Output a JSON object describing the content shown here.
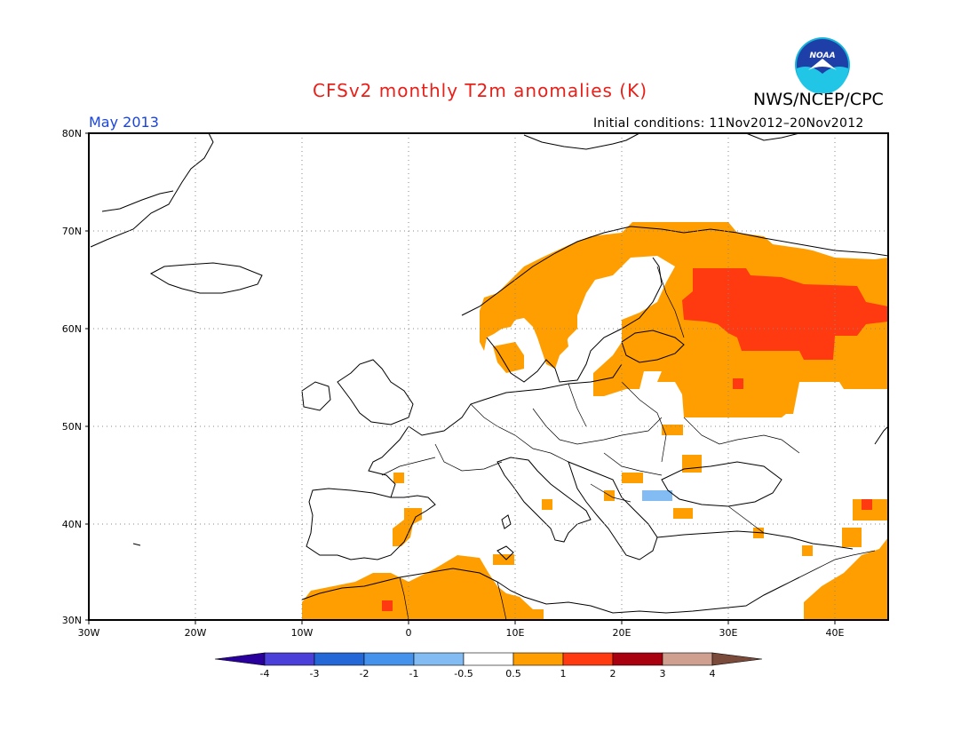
{
  "header": {
    "title": "CFSv2 monthly T2m anomalies (K)",
    "agency": "NWS/NCEP/CPC",
    "month": "May 2013",
    "initial_conditions": "Initial conditions: 11Nov2012–20Nov2012",
    "logo_text": "NOAA"
  },
  "map": {
    "lon_range": [
      -30,
      45
    ],
    "lat_range": [
      30,
      80
    ],
    "lat_labels": [
      "80N",
      "70N",
      "60N",
      "50N",
      "40N",
      "30N"
    ],
    "lon_labels": [
      "30W",
      "20W",
      "10W",
      "0",
      "10E",
      "20E",
      "30E",
      "40E"
    ]
  },
  "colorbar": {
    "tick_labels": [
      "-4",
      "-3",
      "-2",
      "-1",
      "-0.5",
      "0.5",
      "1",
      "2",
      "3",
      "4"
    ],
    "colors": [
      "#2a009c",
      "#4a3fd8",
      "#2468d8",
      "#4492ec",
      "#82bcf2",
      "#ffffff",
      "#ff9e00",
      "#ff3a10",
      "#a8000e",
      "#cfa090",
      "#7a4a3a"
    ]
  },
  "anomaly_colors": {
    "warm_0_5_1": "#ff9e00",
    "warm_1_2": "#ff3a10",
    "cool_m1_m0_5": "#82bcf2"
  }
}
